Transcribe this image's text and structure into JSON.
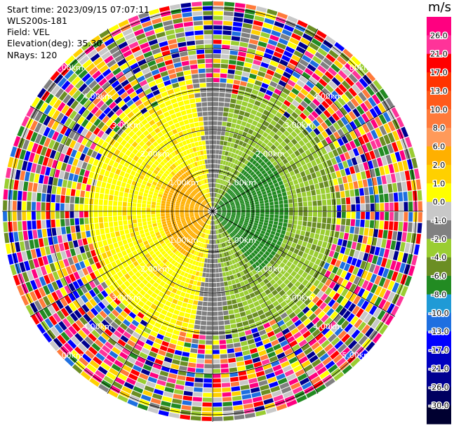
{
  "info": {
    "start_time": "Start time: 2023/09/15 07:07:11",
    "site": "WLS200s-181",
    "field": "Field: VEL",
    "elevation": "Elevation(deg): 35.30",
    "nrays": "NRays: 120"
  },
  "range_ring_labels": [
    "1.00km",
    "2.00km",
    "3.00km",
    "4.00km",
    "5.00km"
  ],
  "colorbar": {
    "unit": "m/s",
    "ticks": [
      "26.0",
      "21.0",
      "17.0",
      "13.0",
      "10.0",
      "8.0",
      "6.0",
      "2.0",
      "1.0",
      "0.0",
      "-1.0",
      "-2.0",
      "-4.0",
      "-6.0",
      "-8.0",
      "-10.0",
      "-13.0",
      "-17.0",
      "-21.0",
      "-26.0",
      "-30.0"
    ],
    "colors": [
      "#ff0080",
      "#ff3399",
      "#ff0000",
      "#ff3300",
      "#ff5a1a",
      "#ff7a3a",
      "#ff9a5a",
      "#ffb000",
      "#ffd000",
      "#ffff00",
      "#c8c8c8",
      "#808080",
      "#9acd32",
      "#6b8e23",
      "#228b22",
      "#1f9ad6",
      "#1e6fe0",
      "#0000ff",
      "#0000c0",
      "#000090",
      "#000060",
      "#000030"
    ]
  }
}
